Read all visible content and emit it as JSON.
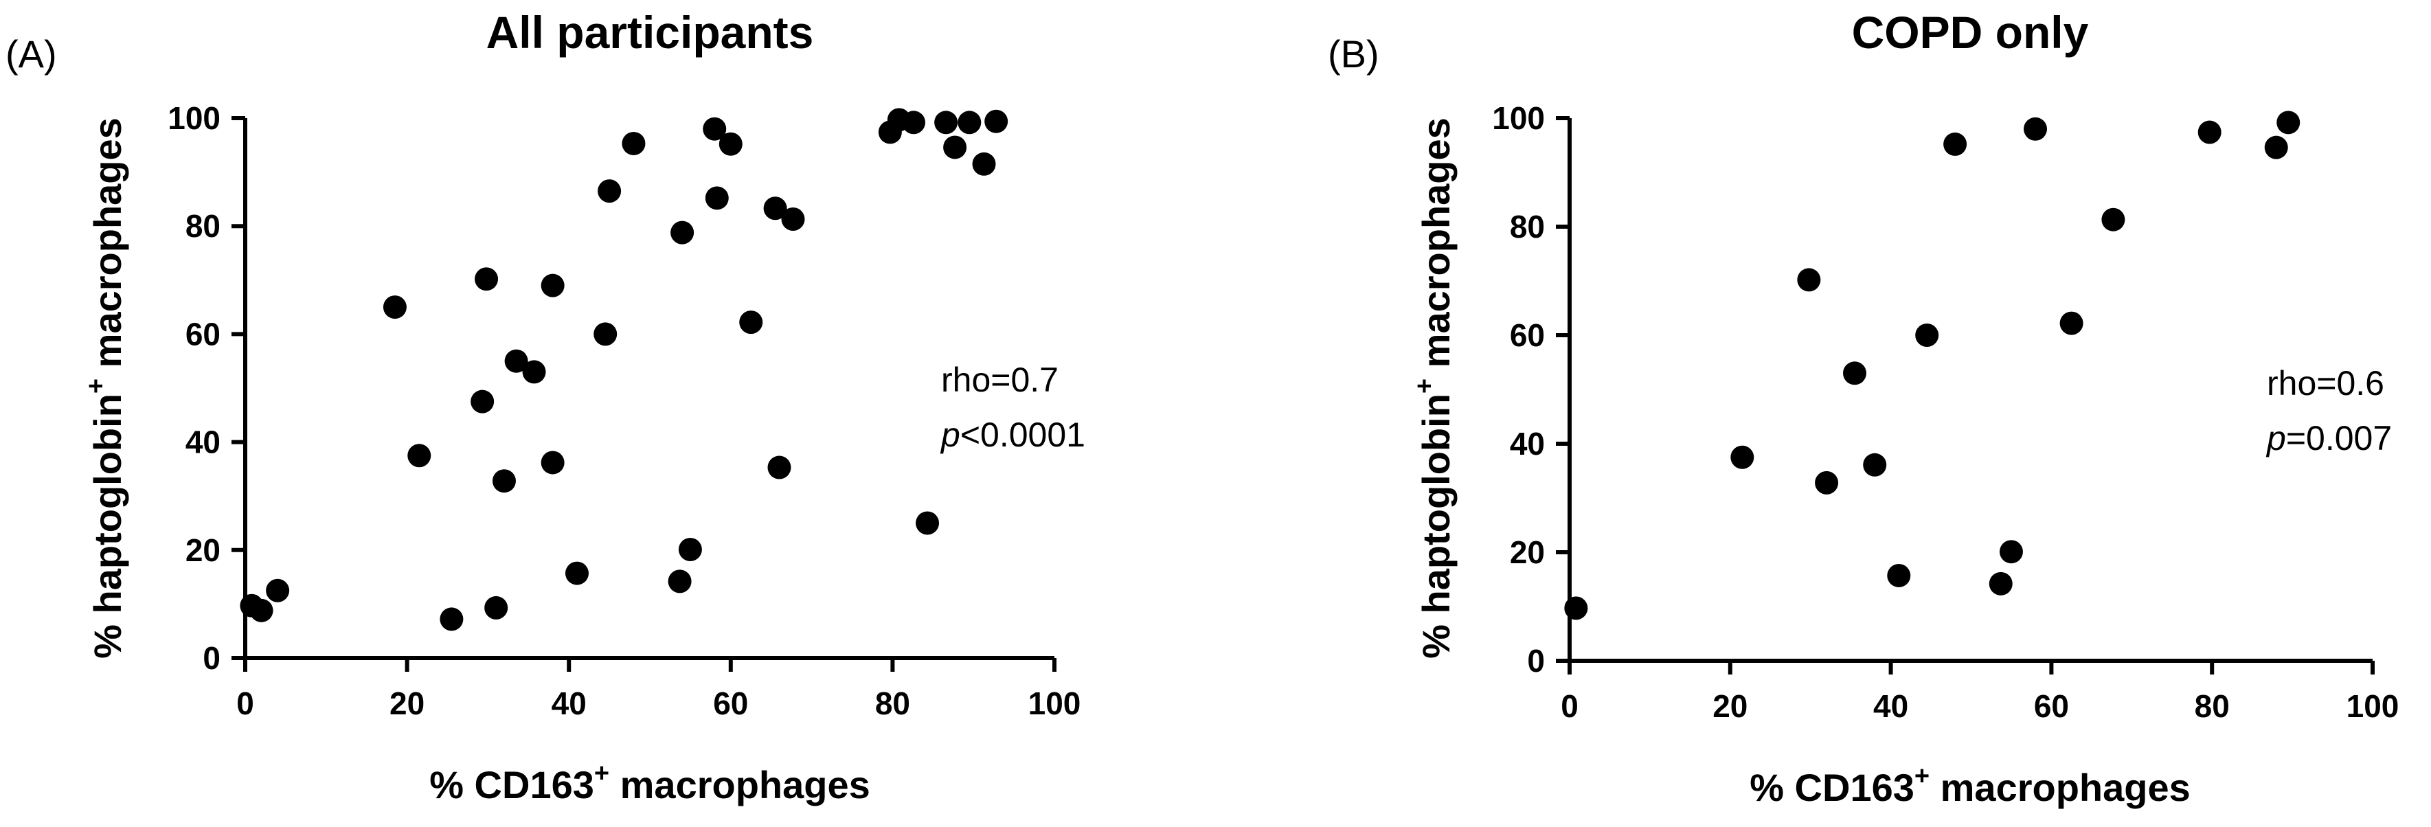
{
  "chart_data": [
    {
      "type": "scatter",
      "panel_label": "(A)",
      "title": "All participants",
      "xlabel_prefix": "% CD163",
      "xlabel_sup": "+",
      "xlabel_suffix": " macrophages",
      "ylabel_prefix": "% haptoglobin",
      "ylabel_sup": "+",
      "ylabel_suffix": " macrophages",
      "xlim": [
        0,
        100
      ],
      "ylim": [
        0,
        100
      ],
      "xticks": [
        0,
        20,
        40,
        60,
        80,
        100
      ],
      "yticks": [
        0,
        20,
        40,
        60,
        80,
        100
      ],
      "grid": false,
      "marker_color": "#000000",
      "annotation": {
        "rho": "rho=0.7",
        "p_symbol": "p",
        "p_value": "<0.0001"
      },
      "points": [
        {
          "x": 0.8,
          "y": 9.7
        },
        {
          "x": 2.0,
          "y": 8.8
        },
        {
          "x": 4.0,
          "y": 12.5
        },
        {
          "x": 18.5,
          "y": 65.0
        },
        {
          "x": 21.5,
          "y": 37.5
        },
        {
          "x": 25.5,
          "y": 7.2
        },
        {
          "x": 29.3,
          "y": 47.5
        },
        {
          "x": 29.8,
          "y": 70.2
        },
        {
          "x": 31.0,
          "y": 9.3
        },
        {
          "x": 32.0,
          "y": 32.8
        },
        {
          "x": 33.5,
          "y": 55.0
        },
        {
          "x": 35.7,
          "y": 53.0
        },
        {
          "x": 38.0,
          "y": 69.0
        },
        {
          "x": 38.0,
          "y": 36.2
        },
        {
          "x": 41.0,
          "y": 15.7
        },
        {
          "x": 44.5,
          "y": 60.0
        },
        {
          "x": 45.0,
          "y": 86.5
        },
        {
          "x": 48.0,
          "y": 95.3
        },
        {
          "x": 53.7,
          "y": 14.2
        },
        {
          "x": 54.0,
          "y": 78.8
        },
        {
          "x": 55.0,
          "y": 20.1
        },
        {
          "x": 58.0,
          "y": 98.0
        },
        {
          "x": 58.3,
          "y": 85.2
        },
        {
          "x": 60.0,
          "y": 95.2
        },
        {
          "x": 62.5,
          "y": 62.2
        },
        {
          "x": 65.5,
          "y": 83.3
        },
        {
          "x": 66.0,
          "y": 35.3
        },
        {
          "x": 67.7,
          "y": 81.3
        },
        {
          "x": 79.7,
          "y": 97.4
        },
        {
          "x": 80.8,
          "y": 99.7
        },
        {
          "x": 82.6,
          "y": 99.2
        },
        {
          "x": 84.3,
          "y": 25.0
        },
        {
          "x": 86.6,
          "y": 99.2
        },
        {
          "x": 87.7,
          "y": 94.6
        },
        {
          "x": 89.5,
          "y": 99.2
        },
        {
          "x": 91.3,
          "y": 91.5
        },
        {
          "x": 92.8,
          "y": 99.4
        }
      ]
    },
    {
      "type": "scatter",
      "panel_label": "(B)",
      "title": "COPD only",
      "xlabel_prefix": "% CD163",
      "xlabel_sup": "+",
      "xlabel_suffix": " macrophages",
      "ylabel_prefix": "% haptoglobin",
      "ylabel_sup": "+",
      "ylabel_suffix": " macrophages",
      "xlim": [
        0,
        100
      ],
      "ylim": [
        0,
        100
      ],
      "xticks": [
        0,
        20,
        40,
        60,
        80,
        100
      ],
      "yticks": [
        0,
        20,
        40,
        60,
        80,
        100
      ],
      "grid": false,
      "marker_color": "#000000",
      "annotation": {
        "rho": "rho=0.6",
        "p_symbol": "p",
        "p_value": "=0.007"
      },
      "points": [
        {
          "x": 0.8,
          "y": 9.7
        },
        {
          "x": 21.5,
          "y": 37.5
        },
        {
          "x": 29.8,
          "y": 70.2
        },
        {
          "x": 32.0,
          "y": 32.8
        },
        {
          "x": 35.5,
          "y": 53.0
        },
        {
          "x": 38.0,
          "y": 36.1
        },
        {
          "x": 41.0,
          "y": 15.7
        },
        {
          "x": 44.5,
          "y": 60.0
        },
        {
          "x": 48.0,
          "y": 95.2
        },
        {
          "x": 53.7,
          "y": 14.2
        },
        {
          "x": 55.0,
          "y": 20.1
        },
        {
          "x": 58.0,
          "y": 98.0
        },
        {
          "x": 62.5,
          "y": 62.2
        },
        {
          "x": 67.7,
          "y": 81.3
        },
        {
          "x": 79.7,
          "y": 97.4
        },
        {
          "x": 88.0,
          "y": 94.6
        },
        {
          "x": 89.5,
          "y": 99.2
        }
      ]
    }
  ]
}
